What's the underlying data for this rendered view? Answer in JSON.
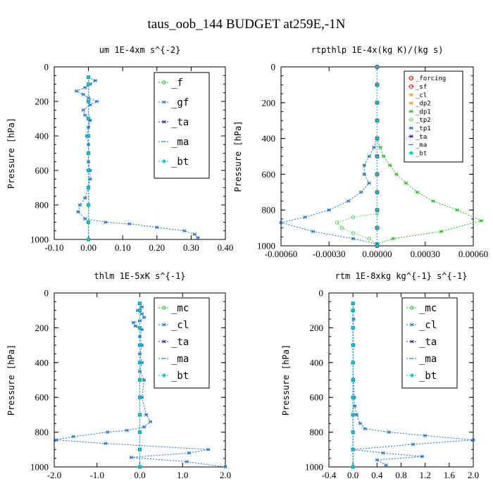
{
  "page": {
    "title": "taus_oob_144  BUDGET at259E,-1N"
  },
  "colors": {
    "green": "#22bb22",
    "blue": "#1a6fd1",
    "navy": "#1a1aa6",
    "cyan": "#00c8d0",
    "red": "#e01010",
    "orange": "#f0a000",
    "lightgreen": "#60d060"
  },
  "chart_data": [
    {
      "type": "line",
      "title": "um  1E-4xm s^{-2}",
      "ylabel": "Pressure [hPa]",
      "xlim": [
        -0.1,
        0.4
      ],
      "ylim": [
        1000,
        0
      ],
      "xticks": [
        -0.1,
        0.0,
        0.1,
        0.2,
        0.3,
        0.4
      ],
      "xtick_labels": [
        "-0.10",
        "0.00",
        "0.10",
        "0.20",
        "0.30",
        "0.40"
      ],
      "yticks": [
        0,
        200,
        400,
        600,
        800,
        1000
      ],
      "ytick_labels": [
        "0",
        "200",
        "400",
        "600",
        "800",
        "1000"
      ],
      "legend": {
        "placement": "top-right",
        "entries": [
          "_f",
          "_gf",
          "_ta",
          "_ma",
          "_bt"
        ]
      },
      "series": [
        {
          "name": "_f",
          "color": "green",
          "x": [
            0,
            0,
            0,
            0,
            0,
            0,
            0,
            0,
            0,
            0,
            0
          ],
          "y": [
            60,
            100,
            200,
            300,
            400,
            500,
            600,
            700,
            800,
            900,
            1000
          ]
        },
        {
          "name": "_gf",
          "color": "blue",
          "x": [
            0.0,
            0.02,
            0.005,
            -0.01,
            -0.035,
            -0.015,
            0.0,
            0.025,
            0.005,
            -0.015,
            -0.01,
            0.005,
            0.0,
            -0.005,
            0.0,
            0.0,
            0.0,
            0.005,
            0.005,
            0.0,
            -0.01,
            -0.025,
            -0.03,
            -0.01,
            0.05,
            0.12,
            0.2,
            0.28,
            0.31,
            0.32
          ],
          "y": [
            60,
            80,
            100,
            120,
            140,
            160,
            180,
            200,
            220,
            250,
            280,
            310,
            350,
            400,
            450,
            500,
            550,
            600,
            650,
            700,
            760,
            800,
            840,
            880,
            900,
            910,
            930,
            950,
            970,
            990
          ]
        },
        {
          "name": "_ta",
          "color": "navy",
          "x": [
            0,
            0,
            0,
            0,
            0,
            0,
            0,
            0,
            0,
            0,
            0
          ],
          "y": [
            60,
            100,
            200,
            300,
            400,
            500,
            600,
            700,
            800,
            900,
            1000
          ]
        },
        {
          "name": "_ma",
          "color": "blue",
          "x": [
            0,
            0,
            0,
            0,
            0,
            0,
            0,
            0,
            0,
            0,
            0
          ],
          "y": [
            60,
            100,
            200,
            300,
            400,
            500,
            600,
            700,
            800,
            900,
            1000
          ]
        },
        {
          "name": "_bt",
          "color": "cyan",
          "x": [
            0,
            0,
            0,
            0,
            0,
            0,
            0,
            0,
            0,
            0,
            0
          ],
          "y": [
            60,
            100,
            200,
            300,
            400,
            500,
            600,
            700,
            800,
            900,
            1000
          ]
        }
      ]
    },
    {
      "type": "line",
      "title": "rtpthlp  1E-4x(kg K)/(kg s)",
      "ylabel": "Pressure [hPa]",
      "xlim": [
        -0.0006,
        0.0006
      ],
      "ylim": [
        1000,
        0
      ],
      "xticks": [
        -0.0006,
        -0.0003,
        0.0,
        0.0003,
        0.0006
      ],
      "xtick_labels": [
        "-0.00060",
        "-0.00030",
        "0.00000",
        "0.00030",
        "0.00060"
      ],
      "yticks": [
        0,
        200,
        400,
        600,
        800,
        1000
      ],
      "ytick_labels": [
        "0",
        "200",
        "400",
        "600",
        "800",
        "1000"
      ],
      "legend": {
        "placement": "top-right",
        "entries": [
          "_forcing",
          "_sf",
          "_cl",
          "_dp2",
          "_dp1",
          "_tp2",
          "_tp1",
          "_ta",
          "_ma",
          "_bt"
        ]
      },
      "series": [
        {
          "name": "_forcing",
          "color": "red",
          "x": [
            0,
            0,
            0,
            0,
            0,
            0,
            0,
            0,
            0,
            0,
            0
          ],
          "y": [
            0,
            100,
            200,
            300,
            400,
            500,
            600,
            700,
            800,
            900,
            1000
          ]
        },
        {
          "name": "_sf",
          "color": "red",
          "x": [
            0,
            0,
            0,
            0,
            0,
            0,
            0,
            0,
            0,
            0,
            0
          ],
          "y": [
            0,
            100,
            200,
            300,
            400,
            500,
            600,
            700,
            800,
            900,
            1000
          ]
        },
        {
          "name": "_cl",
          "color": "orange",
          "x": [
            0,
            0,
            0,
            0,
            0,
            0,
            0,
            0,
            0,
            0,
            0
          ],
          "y": [
            0,
            100,
            200,
            300,
            400,
            500,
            600,
            700,
            800,
            900,
            1000
          ]
        },
        {
          "name": "_dp2",
          "color": "orange",
          "x": [
            0,
            0,
            0,
            0,
            0,
            0,
            0,
            0,
            0,
            0,
            0
          ],
          "y": [
            0,
            100,
            200,
            300,
            400,
            500,
            600,
            700,
            800,
            900,
            1000
          ]
        },
        {
          "name": "_dp1",
          "color": "green",
          "x": [
            0.0,
            2e-05,
            4e-05,
            8e-05,
            0.00012,
            0.00018,
            0.00025,
            0.00035,
            0.0005,
            0.00065,
            0.0004,
            0.0001,
            0.0
          ],
          "y": [
            400,
            450,
            500,
            550,
            600,
            650,
            700,
            750,
            800,
            860,
            920,
            960,
            990
          ]
        },
        {
          "name": "_tp2",
          "color": "lightgreen",
          "x": [
            0.0,
            -0.00015,
            -0.00025,
            -0.00022,
            -0.00015,
            -5e-05,
            0.0
          ],
          "y": [
            820,
            840,
            870,
            900,
            930,
            960,
            990
          ]
        },
        {
          "name": "_tp1",
          "color": "blue",
          "x": [
            0.0,
            -2e-05,
            -5e-05,
            -8e-05,
            -8e-05,
            -5e-05,
            -0.0001,
            -0.00018,
            -0.0003,
            -0.00045,
            -0.0006,
            -0.0004,
            -0.00015,
            0.0
          ],
          "y": [
            400,
            450,
            500,
            550,
            600,
            650,
            700,
            750,
            800,
            840,
            870,
            920,
            960,
            990
          ]
        },
        {
          "name": "_ta",
          "color": "navy",
          "x": [
            0,
            0,
            0,
            0,
            0,
            0,
            0,
            0,
            0,
            0,
            0
          ],
          "y": [
            0,
            100,
            200,
            300,
            400,
            500,
            600,
            700,
            800,
            900,
            1000
          ]
        },
        {
          "name": "_ma",
          "color": "blue",
          "x": [
            0,
            0,
            0,
            0,
            0,
            0,
            0,
            0,
            0,
            0,
            0
          ],
          "y": [
            0,
            100,
            200,
            300,
            400,
            500,
            600,
            700,
            800,
            900,
            1000
          ]
        },
        {
          "name": "_bt",
          "color": "cyan",
          "x": [
            0,
            0,
            0,
            0,
            0,
            0,
            0,
            0,
            0,
            0,
            0
          ],
          "y": [
            0,
            100,
            200,
            300,
            400,
            500,
            600,
            700,
            800,
            900,
            1000
          ]
        }
      ]
    },
    {
      "type": "line",
      "title": "thlm  1E-5xK s^{-1}",
      "ylabel": "Pressure [hPa]",
      "xlim": [
        -2.0,
        2.0
      ],
      "ylim": [
        1000,
        0
      ],
      "xticks": [
        -2.0,
        -1.0,
        0.0,
        1.0,
        2.0
      ],
      "xtick_labels": [
        "-2.0",
        "-1.0",
        "0.0",
        "1.0",
        "2.0"
      ],
      "yticks": [
        0,
        200,
        400,
        600,
        800,
        1000
      ],
      "ytick_labels": [
        "0",
        "200",
        "400",
        "600",
        "800",
        "1000"
      ],
      "legend": {
        "placement": "top-right",
        "entries": [
          "_mc",
          "_cl",
          "_ta",
          "_ma",
          "_bt"
        ]
      },
      "series": [
        {
          "name": "_mc",
          "color": "green",
          "x": [
            0,
            0,
            0,
            0,
            0,
            0,
            0,
            0,
            0,
            0,
            0
          ],
          "y": [
            60,
            100,
            200,
            300,
            400,
            500,
            600,
            700,
            800,
            900,
            1000
          ]
        },
        {
          "name": "_cl",
          "color": "blue",
          "x": [
            0.0,
            0.05,
            -0.05,
            0.05,
            0.1,
            0.0,
            -0.15,
            -0.1,
            0.05,
            0.0,
            0.05,
            0.0,
            0.05,
            0.0,
            0.1,
            0.05,
            0.15,
            0.25,
            0.1,
            -0.3,
            -0.75,
            -1.55,
            -1.95,
            -0.8,
            1.6,
            1.15,
            -0.2,
            1.1,
            2.0
          ],
          "y": [
            60,
            80,
            100,
            120,
            140,
            160,
            170,
            190,
            210,
            250,
            300,
            350,
            400,
            450,
            500,
            600,
            700,
            740,
            770,
            790,
            800,
            825,
            845,
            865,
            900,
            920,
            945,
            970,
            1000
          ]
        },
        {
          "name": "_ta",
          "color": "navy",
          "x": [
            0,
            0,
            0,
            0,
            0,
            0,
            0,
            0,
            0,
            0,
            0
          ],
          "y": [
            60,
            100,
            200,
            300,
            400,
            500,
            600,
            700,
            800,
            900,
            1000
          ]
        },
        {
          "name": "_ma",
          "color": "blue",
          "x": [
            0,
            0,
            0,
            0,
            0,
            0,
            0,
            0,
            0,
            0,
            0
          ],
          "y": [
            60,
            100,
            200,
            300,
            400,
            500,
            600,
            700,
            800,
            900,
            1000
          ]
        },
        {
          "name": "_bt",
          "color": "cyan",
          "x": [
            0,
            0,
            0,
            0,
            0,
            0,
            0,
            0,
            0,
            0,
            0
          ],
          "y": [
            60,
            100,
            200,
            300,
            400,
            500,
            600,
            700,
            800,
            900,
            1000
          ]
        }
      ]
    },
    {
      "type": "line",
      "title": "rtm  1E-8xkg kg^{-1} s^{-1}",
      "ylabel": "Pressure [hPa]",
      "xlim": [
        -0.4,
        2.0
      ],
      "ylim": [
        1000,
        0
      ],
      "xticks": [
        -0.4,
        0.0,
        0.4,
        0.8,
        1.2,
        1.6,
        2.0
      ],
      "xtick_labels": [
        "-0.4",
        "0.0",
        "0.4",
        "0.8",
        "1.2",
        "1.6",
        "2.0"
      ],
      "yticks": [
        0,
        200,
        400,
        600,
        800,
        1000
      ],
      "ytick_labels": [
        "0",
        "200",
        "400",
        "600",
        "800",
        "1000"
      ],
      "legend": {
        "placement": "top-right",
        "entries": [
          "_mc",
          "_cl",
          "_ta",
          "_ma",
          "_bt"
        ]
      },
      "series": [
        {
          "name": "_mc",
          "color": "green",
          "x": [
            0,
            0,
            0,
            0,
            0,
            0,
            0,
            0,
            0,
            0,
            0
          ],
          "y": [
            60,
            100,
            200,
            300,
            400,
            500,
            600,
            700,
            800,
            900,
            1000
          ]
        },
        {
          "name": "_cl",
          "color": "blue",
          "x": [
            0.0,
            0.0,
            0.01,
            0.0,
            0.01,
            0.0,
            0.01,
            0.02,
            0.03,
            0.06,
            0.12,
            0.2,
            0.6,
            1.2,
            2.0,
            1.0,
            0.0,
            0.5,
            1.15,
            0.4,
            0.55
          ],
          "y": [
            60,
            100,
            150,
            200,
            300,
            400,
            500,
            600,
            650,
            700,
            750,
            780,
            800,
            820,
            845,
            870,
            900,
            920,
            940,
            960,
            990
          ]
        },
        {
          "name": "_ta",
          "color": "navy",
          "x": [
            0,
            0,
            0,
            0,
            0,
            0,
            0,
            0,
            0,
            0,
            0
          ],
          "y": [
            60,
            100,
            200,
            300,
            400,
            500,
            600,
            700,
            800,
            900,
            1000
          ]
        },
        {
          "name": "_ma",
          "color": "blue",
          "x": [
            0,
            0,
            0,
            0,
            0,
            0,
            0,
            0,
            0,
            0,
            0
          ],
          "y": [
            60,
            100,
            200,
            300,
            400,
            500,
            600,
            700,
            800,
            900,
            1000
          ]
        },
        {
          "name": "_bt",
          "color": "cyan",
          "x": [
            0,
            0,
            0,
            0,
            0,
            0,
            0,
            0,
            0,
            0,
            0
          ],
          "y": [
            60,
            100,
            200,
            300,
            400,
            500,
            600,
            700,
            800,
            900,
            1000
          ]
        }
      ]
    }
  ]
}
